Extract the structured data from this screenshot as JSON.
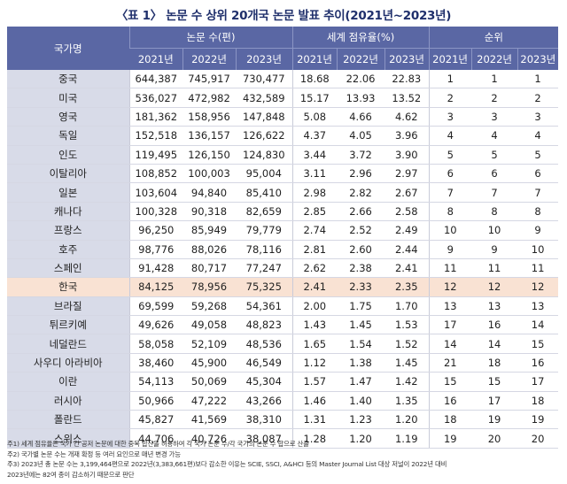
{
  "title": "〈표 1〉 논문 수 상위 20개국 논문 발표 추이(2021년~2023년)",
  "headers": {
    "country": "국가명",
    "groups": [
      "논문 수(편)",
      "세계 점유율(%)",
      "순위"
    ],
    "years": [
      "2021년",
      "2022년",
      "2023년",
      "2021년",
      "2022년",
      "2023년",
      "2021년",
      "2022년",
      "2023년"
    ]
  },
  "rows": [
    {
      "country": "중국",
      "papers": [
        "644,387",
        "745,917",
        "730,477"
      ],
      "share": [
        "18.68",
        "22.06",
        "22.83"
      ],
      "rank": [
        "1",
        "1",
        "1"
      ]
    },
    {
      "country": "미국",
      "papers": [
        "536,027",
        "472,982",
        "432,589"
      ],
      "share": [
        "15.17",
        "13.93",
        "13.52"
      ],
      "rank": [
        "2",
        "2",
        "2"
      ]
    },
    {
      "country": "영국",
      "papers": [
        "181,362",
        "158,956",
        "147,848"
      ],
      "share": [
        "5.08",
        "4.66",
        "4.62"
      ],
      "rank": [
        "3",
        "3",
        "3"
      ]
    },
    {
      "country": "독일",
      "papers": [
        "152,518",
        "136,157",
        "126,622"
      ],
      "share": [
        "4.37",
        "4.05",
        "3.96"
      ],
      "rank": [
        "4",
        "4",
        "4"
      ]
    },
    {
      "country": "인도",
      "papers": [
        "119,495",
        "126,150",
        "124,830"
      ],
      "share": [
        "3.44",
        "3.72",
        "3.90"
      ],
      "rank": [
        "5",
        "5",
        "5"
      ]
    },
    {
      "country": "이탈리아",
      "papers": [
        "108,852",
        "100,003",
        "95,004"
      ],
      "share": [
        "3.11",
        "2.96",
        "2.97"
      ],
      "rank": [
        "6",
        "6",
        "6"
      ]
    },
    {
      "country": "일본",
      "papers": [
        "103,604",
        "94,840",
        "85,410"
      ],
      "share": [
        "2.98",
        "2.82",
        "2.67"
      ],
      "rank": [
        "7",
        "7",
        "7"
      ]
    },
    {
      "country": "캐나다",
      "papers": [
        "100,328",
        "90,318",
        "82,659"
      ],
      "share": [
        "2.85",
        "2.66",
        "2.58"
      ],
      "rank": [
        "8",
        "8",
        "8"
      ]
    },
    {
      "country": "프랑스",
      "papers": [
        "96,250",
        "85,949",
        "79,779"
      ],
      "share": [
        "2.74",
        "2.52",
        "2.49"
      ],
      "rank": [
        "10",
        "10",
        "9"
      ]
    },
    {
      "country": "호주",
      "papers": [
        "98,776",
        "88,026",
        "78,116"
      ],
      "share": [
        "2.81",
        "2.60",
        "2.44"
      ],
      "rank": [
        "9",
        "9",
        "10"
      ]
    },
    {
      "country": "스페인",
      "papers": [
        "91,428",
        "80,717",
        "77,247"
      ],
      "share": [
        "2.62",
        "2.38",
        "2.41"
      ],
      "rank": [
        "11",
        "11",
        "11"
      ]
    },
    {
      "country": "한국",
      "papers": [
        "84,125",
        "78,956",
        "75,325"
      ],
      "share": [
        "2.41",
        "2.33",
        "2.35"
      ],
      "rank": [
        "12",
        "12",
        "12"
      ],
      "highlight": true
    },
    {
      "country": "브라질",
      "papers": [
        "69,599",
        "59,268",
        "54,361"
      ],
      "share": [
        "2.00",
        "1.75",
        "1.70"
      ],
      "rank": [
        "13",
        "13",
        "13"
      ]
    },
    {
      "country": "튀르키예",
      "papers": [
        "49,626",
        "49,058",
        "48,823"
      ],
      "share": [
        "1.43",
        "1.45",
        "1.53"
      ],
      "rank": [
        "17",
        "16",
        "14"
      ]
    },
    {
      "country": "네덜란드",
      "papers": [
        "58,058",
        "52,109",
        "48,536"
      ],
      "share": [
        "1.65",
        "1.54",
        "1.52"
      ],
      "rank": [
        "14",
        "14",
        "15"
      ]
    },
    {
      "country": "사우디 아라비아",
      "papers": [
        "38,460",
        "45,900",
        "46,549"
      ],
      "share": [
        "1.12",
        "1.38",
        "1.45"
      ],
      "rank": [
        "21",
        "18",
        "16"
      ]
    },
    {
      "country": "이란",
      "papers": [
        "54,113",
        "50,069",
        "45,304"
      ],
      "share": [
        "1.57",
        "1.47",
        "1.42"
      ],
      "rank": [
        "15",
        "15",
        "17"
      ]
    },
    {
      "country": "러시아",
      "papers": [
        "50,966",
        "47,222",
        "43,266"
      ],
      "share": [
        "1.46",
        "1.40",
        "1.35"
      ],
      "rank": [
        "16",
        "17",
        "18"
      ]
    },
    {
      "country": "폴란드",
      "papers": [
        "45,827",
        "41,569",
        "38,310"
      ],
      "share": [
        "1.31",
        "1.23",
        "1.20"
      ],
      "rank": [
        "18",
        "19",
        "19"
      ]
    },
    {
      "country": "스위스",
      "papers": [
        "44,706",
        "40,726",
        "38,087"
      ],
      "share": [
        "1.28",
        "1.20",
        "1.19"
      ],
      "rank": [
        "19",
        "20",
        "20"
      ]
    }
  ],
  "notes": [
    "주1) 세계 점유율은 국가 간 공저 논문에 대한 중복 합산을 허용하여 각 국가 논문 수/각 국가의 논문 수 합으로 산출",
    "주2) 국가별 논문 수는 개재 확정 등 여러 요인으로 매년 변경 가능",
    "주3) 2023년 총 논문 수는 3,199,464편으로 2022년(3,383,661편)보다 감소한 이유는 SCIE, SSCI, A&HCI 등의 Master Journal List 대상 저널이 2022년 대비",
    "2023년에는 82여 종이 감소하기 때문으로 판단"
  ]
}
